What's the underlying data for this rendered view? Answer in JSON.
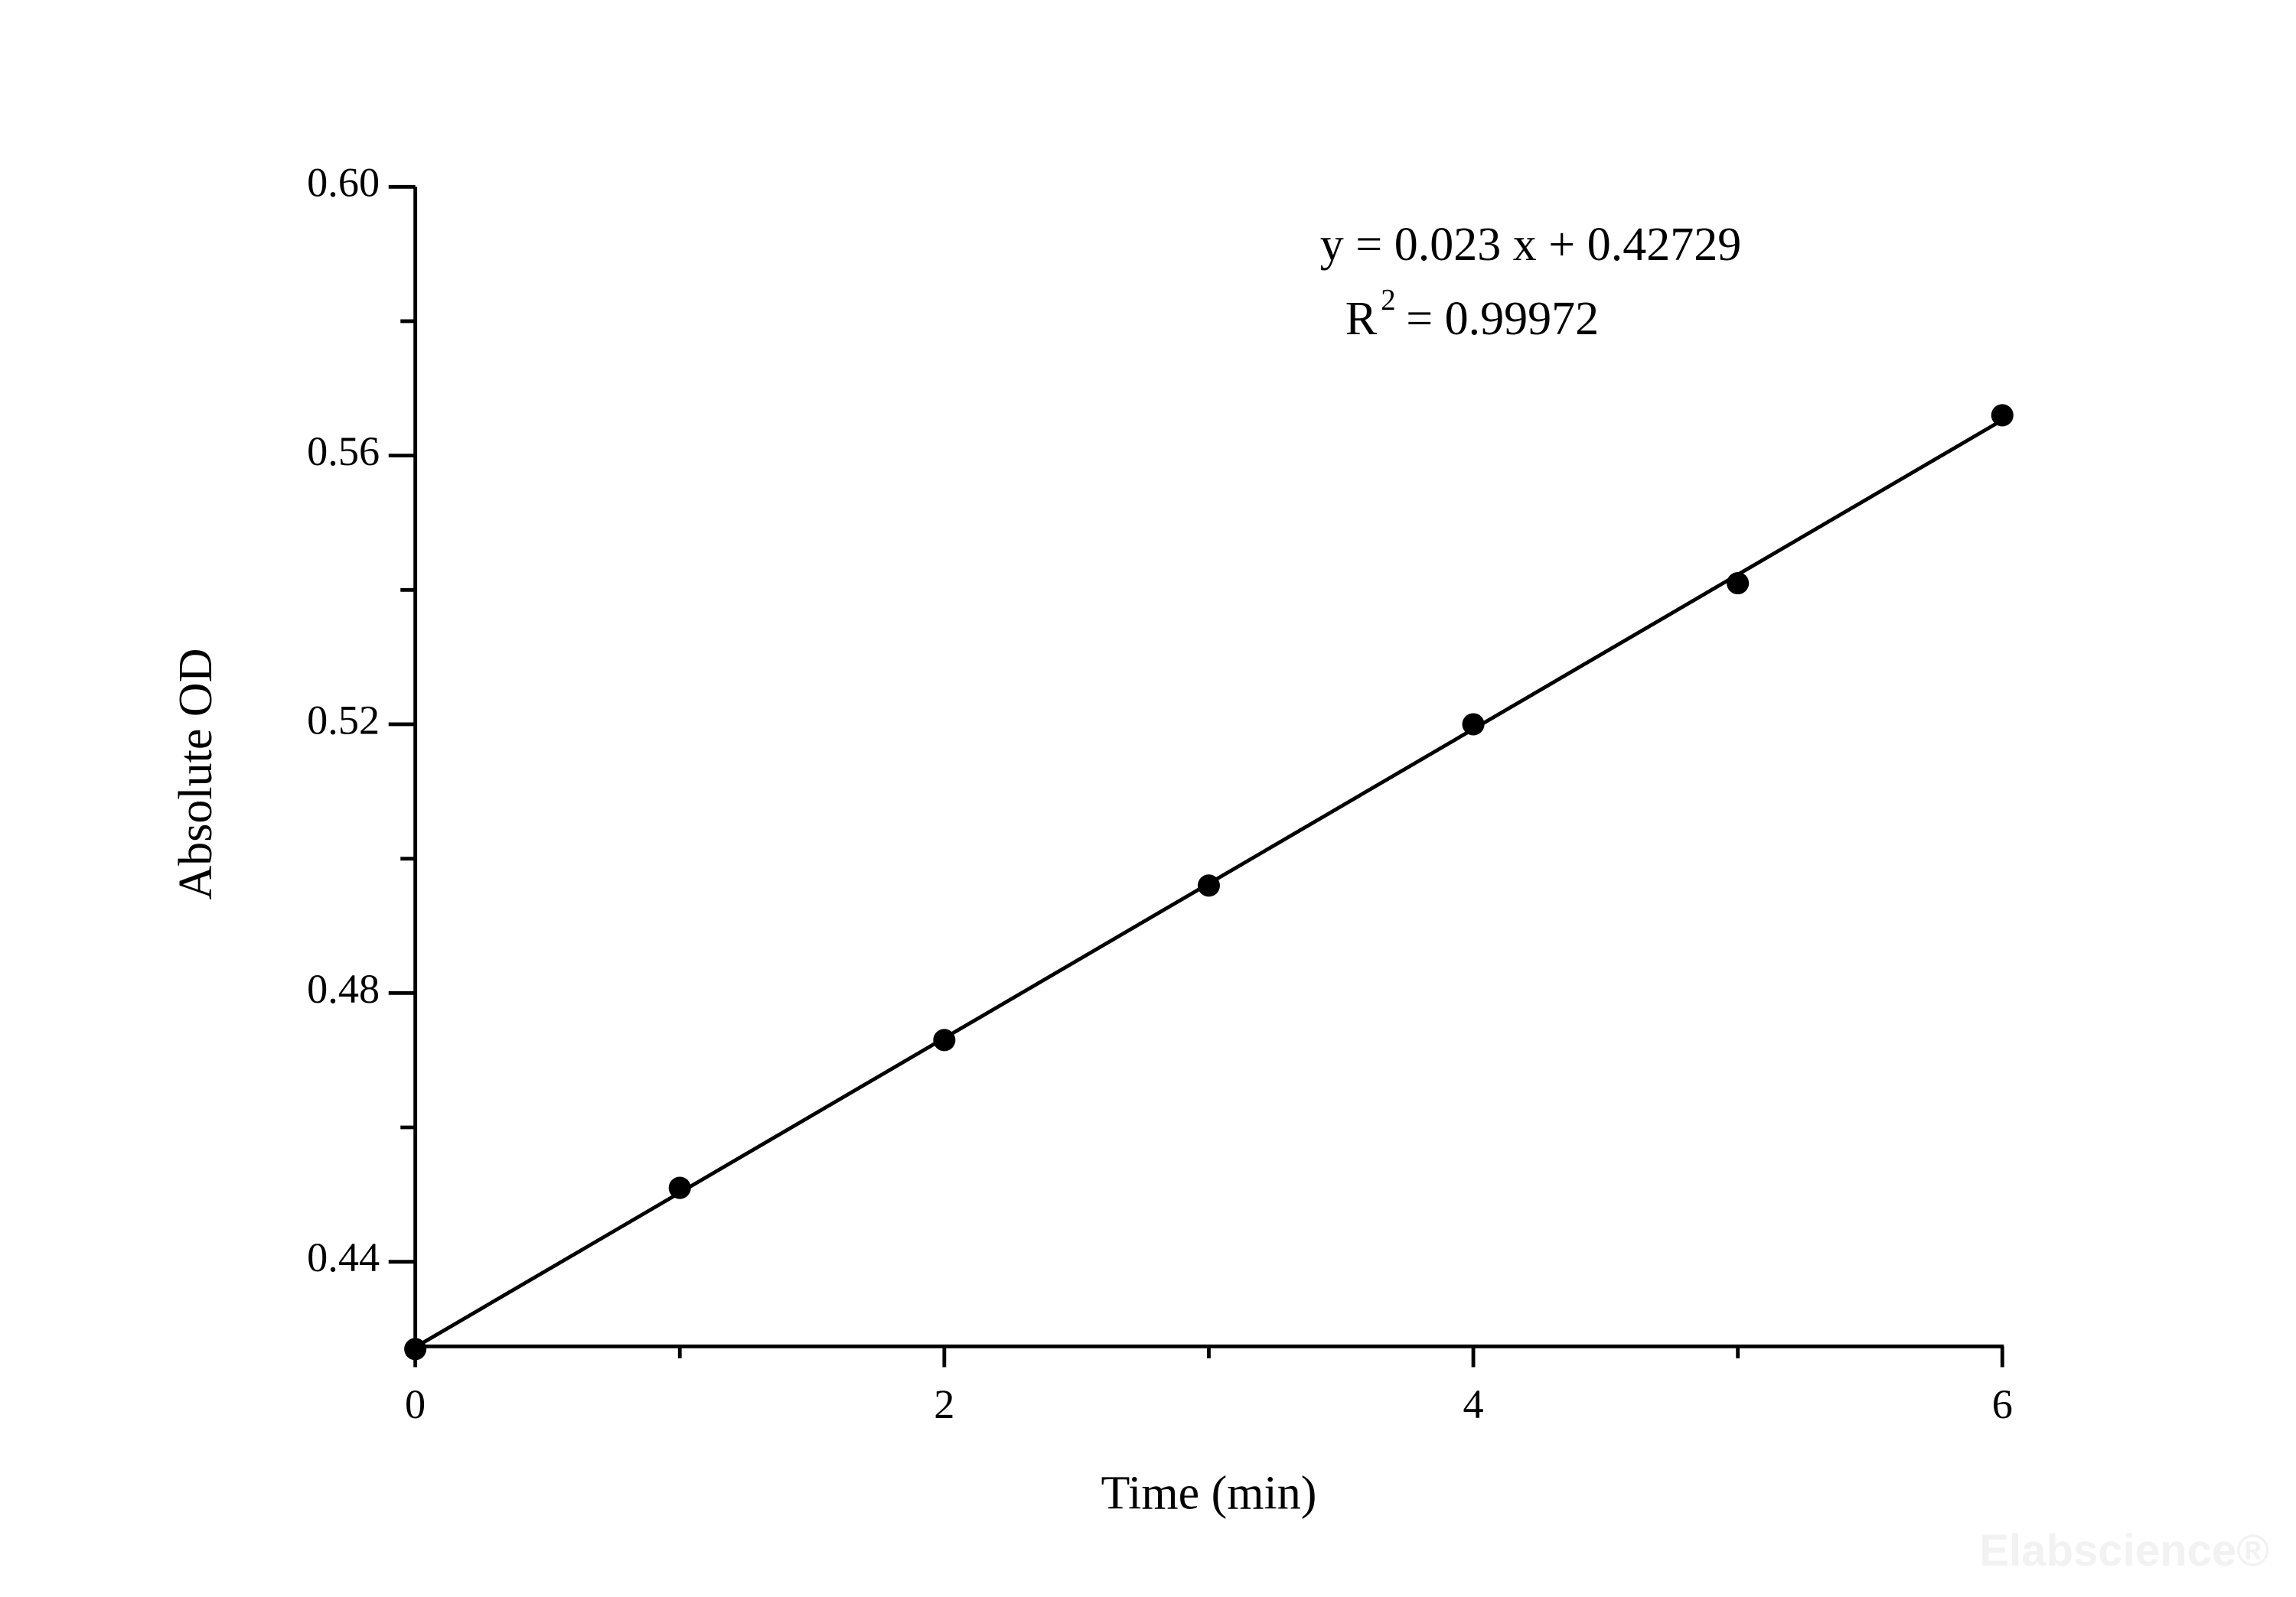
{
  "chart_data": {
    "type": "scatter",
    "x_label": "Time (min)",
    "y_label": "Absolute OD",
    "equation": "y = 0.023 x + 0.42729",
    "r_squared": {
      "text": "R",
      "superscript": "2",
      "value": "= 0.99972"
    },
    "watermark": "Elabscience®",
    "series": [
      {
        "color": "#000000",
        "x": [
          0,
          1,
          2,
          3,
          4,
          5,
          6
        ],
        "values": [
          0.427,
          0.451,
          0.473,
          0.496,
          0.52,
          0.541,
          0.566
        ]
      }
    ],
    "xlim": [
      0,
      6
    ],
    "xticks": [
      0,
      2,
      4,
      6
    ],
    "ylim": [
      0.4274,
      0.6
    ],
    "yticks": [
      0.44,
      0.48,
      0.52,
      0.56,
      {
        "value": 0.6,
        "label": "0.60"
      }
    ],
    "trendline": true
  }
}
